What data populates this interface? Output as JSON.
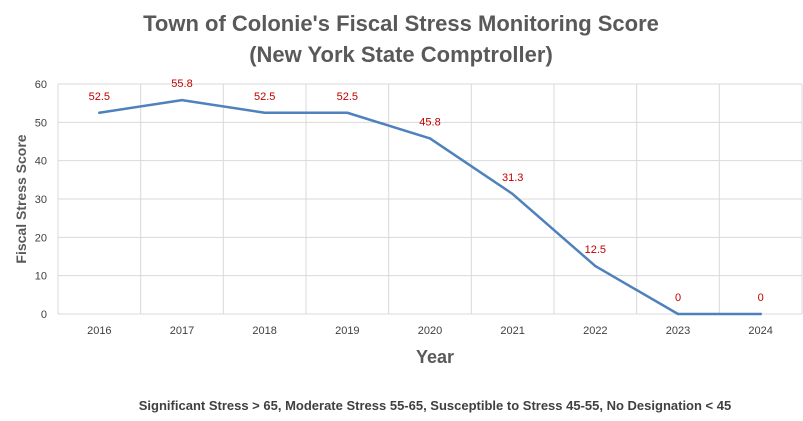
{
  "chart_data": {
    "type": "line",
    "title": "Town of Colonie's Fiscal Stress Monitoring Score",
    "subtitle": "(New York State Comptroller)",
    "xlabel": "Year",
    "ylabel": "Fiscal Stress Score",
    "categories": [
      "2016",
      "2017",
      "2018",
      "2019",
      "2020",
      "2021",
      "2022",
      "2023",
      "2024"
    ],
    "series": [
      {
        "name": "Fiscal Stress Score",
        "values": [
          52.5,
          55.8,
          52.5,
          52.5,
          45.8,
          31.3,
          12.5,
          0,
          0
        ],
        "data_labels": [
          "52.5",
          "55.8",
          "52.5",
          "52.5",
          "45.8",
          "31.3",
          "12.5",
          "0",
          "0"
        ]
      }
    ],
    "ylim": [
      0,
      60
    ],
    "yticks": [
      "0",
      "10",
      "20",
      "30",
      "40",
      "50",
      "60"
    ],
    "grid": true,
    "legend": "none",
    "footnote": "Significant Stress > 65, Moderate Stress 55-65, Susceptible to Stress 45-55, No Designation < 45"
  },
  "colors": {
    "line": "#4f81bd",
    "data_label": "#c00000",
    "grid": "#d9d9d9",
    "title": "#595959"
  }
}
